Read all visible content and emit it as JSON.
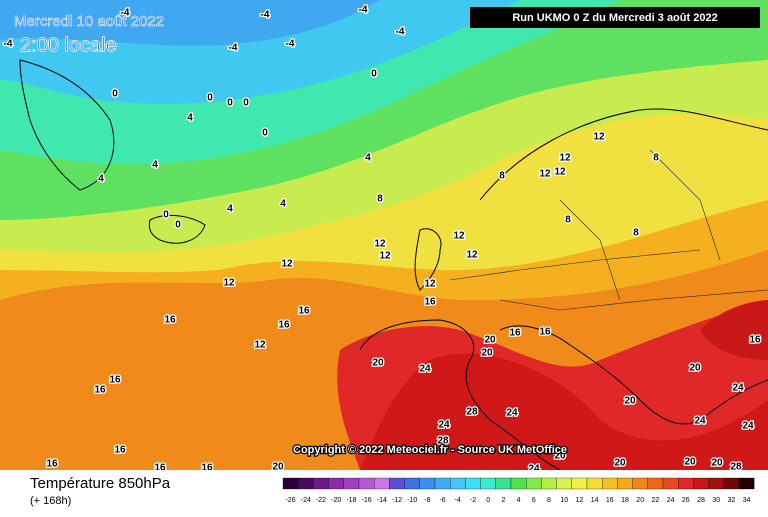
{
  "header": {
    "date": "Mercredi 10 août 2022",
    "time": "2:00 locale",
    "run": "Run UKMO 0 Z du Mercredi 3 août 2022"
  },
  "copyright": "Copyright © 2022 Meteociel.fr - Source UK MetOffice",
  "footer": {
    "title": "Température 850hPa",
    "lead": "(+ 168h)"
  },
  "legend": {
    "ticks": [
      -26,
      -24,
      -22,
      -20,
      -18,
      -16,
      -14,
      -12,
      -10,
      -8,
      -6,
      -4,
      -2,
      0,
      2,
      4,
      6,
      8,
      10,
      12,
      14,
      16,
      18,
      20,
      22,
      24,
      26,
      28,
      30,
      32,
      34
    ],
    "colors": [
      "#2b0036",
      "#4a0a5e",
      "#6a1a86",
      "#8a2aa8",
      "#a040c0",
      "#b45ad0",
      "#c878e0",
      "#5a50d8",
      "#4070e8",
      "#3a90f0",
      "#40acf5",
      "#48c4f8",
      "#3ee0f0",
      "#3aeac8",
      "#38e090",
      "#50e050",
      "#80ea48",
      "#b0f040",
      "#d8f050",
      "#f0f040",
      "#f5dc30",
      "#f5c020",
      "#f5a818",
      "#f08818",
      "#ec6818",
      "#e84820",
      "#e02828",
      "#c81818",
      "#a01010",
      "#700808",
      "#200000"
    ]
  },
  "map": {
    "contour_labels": [
      -4,
      -4,
      -4,
      -4,
      -4,
      -4,
      -4,
      0,
      0,
      0,
      0,
      0,
      0,
      0,
      0,
      4,
      4,
      4,
      4,
      4,
      4,
      8,
      8,
      8,
      8,
      8,
      12,
      12,
      12,
      12,
      12,
      12,
      12,
      12,
      12,
      12,
      12,
      12,
      16,
      16,
      16,
      16,
      16,
      16,
      16,
      16,
      16,
      16,
      16,
      16,
      16,
      20,
      20,
      20,
      20,
      20,
      20,
      20,
      20,
      20,
      20,
      24,
      24,
      24,
      24,
      24,
      24,
      24,
      28,
      28,
      28
    ]
  }
}
